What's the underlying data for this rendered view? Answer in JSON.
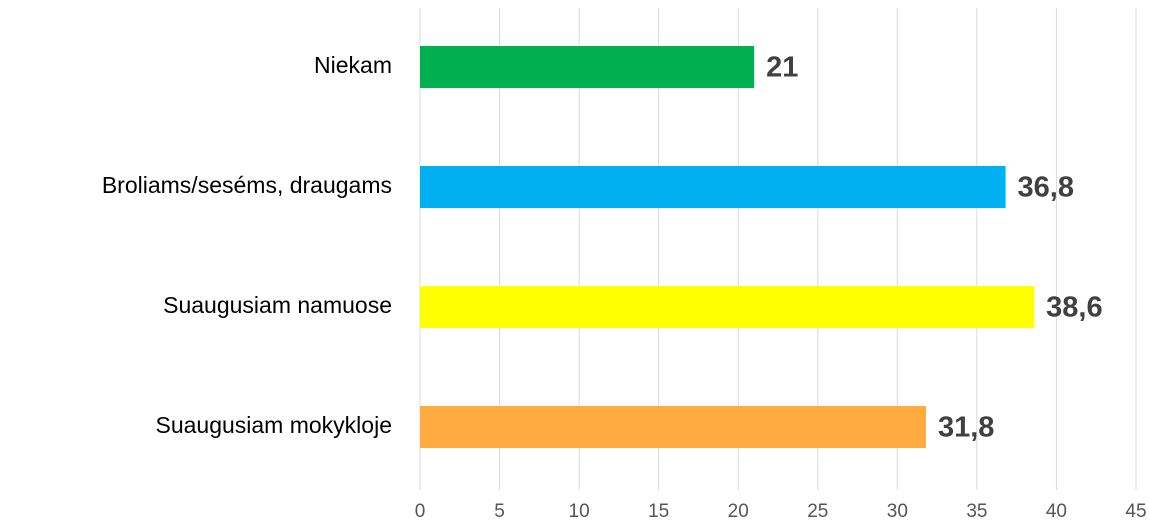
{
  "chart_data": {
    "type": "barh",
    "categories": [
      "Niekam",
      "Broliams/seséms, draugams",
      "Suaugusiam namuose",
      "Suaugusiam mokykloje"
    ],
    "values": [
      21,
      36.8,
      38.6,
      31.8
    ],
    "value_labels": [
      "21",
      "36,8",
      "38,6",
      "31,8"
    ],
    "colors": [
      "#00b050",
      "#00b0f0",
      "#ffff00",
      "#ffab40"
    ],
    "xlim": [
      0,
      45
    ],
    "xticks": [
      0,
      5,
      10,
      15,
      20,
      25,
      30,
      35,
      40,
      45
    ],
    "grid": true
  }
}
